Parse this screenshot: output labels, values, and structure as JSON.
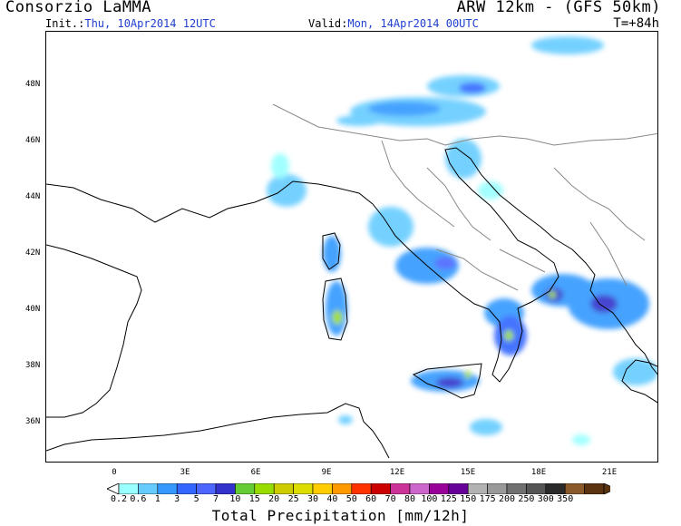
{
  "header": {
    "title_left": "Consorzio LaMMA",
    "title_right": "ARW 12km - (GFS 50km)",
    "init_label": "Init.:",
    "init_value": "Thu, 10Apr2014 12UTC",
    "valid_label": "Valid:",
    "valid_value": "Mon, 14Apr2014 00UTC",
    "lead_time": "T=+84h"
  },
  "map": {
    "lat_labels": [
      "48N",
      "46N",
      "44N",
      "42N",
      "40N",
      "38N",
      "36N"
    ],
    "lon_labels": [
      "0",
      "3E",
      "6E",
      "9E",
      "12E",
      "15E",
      "18E",
      "21E"
    ],
    "precip_areas": [
      {
        "name": "alps-band",
        "level": 3
      },
      {
        "name": "croatia-coast",
        "level": 2
      },
      {
        "name": "ligurian-coast",
        "level": 2
      },
      {
        "name": "corsica",
        "level": 3
      },
      {
        "name": "sardinia",
        "level": 4
      },
      {
        "name": "central-italy",
        "level": 3
      },
      {
        "name": "calabria",
        "level": 5
      },
      {
        "name": "northern-sicily",
        "level": 5
      },
      {
        "name": "apulia-albania",
        "level": 5
      },
      {
        "name": "greece-west",
        "level": 4
      },
      {
        "name": "ionian-sea",
        "level": 2
      }
    ]
  },
  "colorbar": {
    "title": "Total Precipitation [mm/12h]",
    "labels": [
      "0.2",
      "0.6",
      "1",
      "3",
      "5",
      "7",
      "10",
      "15",
      "20",
      "25",
      "30",
      "40",
      "50",
      "60",
      "70",
      "80",
      "100",
      "125",
      "150",
      "175",
      "200",
      "250",
      "300",
      "350"
    ],
    "colors": [
      "#99ffff",
      "#66ccff",
      "#3399ff",
      "#3366ff",
      "#4c66ff",
      "#3333cc",
      "#66cc33",
      "#99dd00",
      "#cccc00",
      "#dddd00",
      "#ffcc00",
      "#ff9900",
      "#ff3300",
      "#cc0000",
      "#cc3399",
      "#cc66cc",
      "#990099",
      "#660099",
      "#b2b2b2",
      "#999999",
      "#707070",
      "#555555",
      "#2a2a2a",
      "#8b5a2b",
      "#5a3410"
    ]
  }
}
